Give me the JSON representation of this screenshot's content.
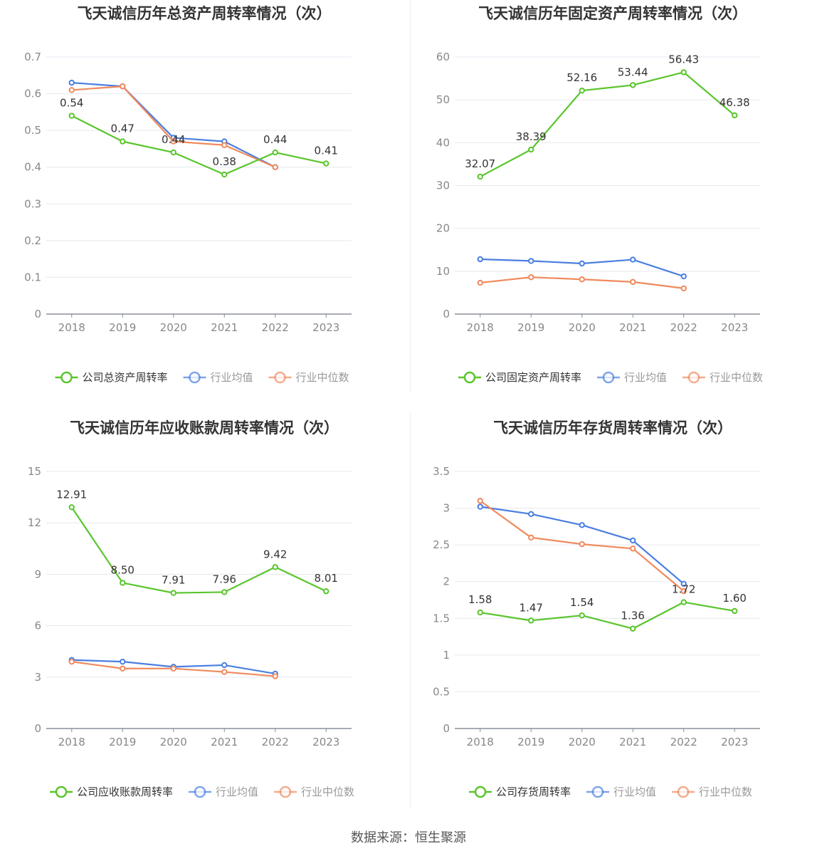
{
  "source": "数据来源：恒生聚源",
  "colors": {
    "company": "#5ac52d",
    "avg": "#4a7fe0",
    "median": "#f08a5d"
  },
  "chart_data": [
    {
      "type": "line",
      "title": "飞天诚信历年总资产周转率情况（次）",
      "categories": [
        "2018",
        "2019",
        "2020",
        "2021",
        "2022",
        "2023"
      ],
      "ylim": [
        0,
        0.7
      ],
      "yticks": [
        "0",
        "0.1",
        "0.2",
        "0.3",
        "0.4",
        "0.5",
        "0.6",
        "0.7"
      ],
      "series": [
        {
          "name": "公司总资产周转率",
          "values": [
            0.54,
            0.47,
            0.44,
            0.38,
            0.44,
            0.41
          ],
          "labels": [
            "0.54",
            "0.47",
            "0.44",
            "0.38",
            "0.44",
            "0.41"
          ]
        },
        {
          "name": "行业均值",
          "values": [
            0.63,
            0.62,
            0.48,
            0.47,
            0.4,
            null
          ]
        },
        {
          "name": "行业中位数",
          "values": [
            0.61,
            0.62,
            0.47,
            0.46,
            0.4,
            null
          ]
        }
      ],
      "grid": true,
      "legend": "bottom"
    },
    {
      "type": "line",
      "title": "飞天诚信历年固定资产周转率情况（次）",
      "categories": [
        "2018",
        "2019",
        "2020",
        "2021",
        "2022",
        "2023"
      ],
      "ylim": [
        0,
        60
      ],
      "yticks": [
        "0",
        "10",
        "20",
        "30",
        "40",
        "50",
        "60"
      ],
      "series": [
        {
          "name": "公司固定资产周转率",
          "values": [
            32.07,
            38.39,
            52.16,
            53.44,
            56.43,
            46.38
          ],
          "labels": [
            "32.07",
            "38.39",
            "52.16",
            "53.44",
            "56.43",
            "46.38"
          ]
        },
        {
          "name": "行业均值",
          "values": [
            12.8,
            12.4,
            11.8,
            12.7,
            8.8,
            null
          ]
        },
        {
          "name": "行业中位数",
          "values": [
            7.3,
            8.6,
            8.1,
            7.5,
            6.0,
            null
          ]
        }
      ],
      "grid": true,
      "legend": "bottom"
    },
    {
      "type": "line",
      "title": "飞天诚信历年应收账款周转率情况（次）",
      "categories": [
        "2018",
        "2019",
        "2020",
        "2021",
        "2022",
        "2023"
      ],
      "ylim": [
        0,
        15
      ],
      "yticks": [
        "0",
        "3",
        "6",
        "9",
        "12",
        "15"
      ],
      "series": [
        {
          "name": "公司应收账款周转率",
          "values": [
            12.91,
            8.5,
            7.91,
            7.96,
            9.42,
            8.01
          ],
          "labels": [
            "12.91",
            "8.50",
            "7.91",
            "7.96",
            "9.42",
            "8.01"
          ]
        },
        {
          "name": "行业均值",
          "values": [
            4.0,
            3.9,
            3.6,
            3.7,
            3.2,
            null
          ]
        },
        {
          "name": "行业中位数",
          "values": [
            3.9,
            3.5,
            3.5,
            3.3,
            3.05,
            null
          ]
        }
      ],
      "grid": true,
      "legend": "bottom"
    },
    {
      "type": "line",
      "title": "飞天诚信历年存货周转率情况（次）",
      "categories": [
        "2018",
        "2019",
        "2020",
        "2021",
        "2022",
        "2023"
      ],
      "ylim": [
        0,
        3.5
      ],
      "yticks": [
        "0",
        "0.5",
        "1",
        "1.5",
        "2",
        "2.5",
        "3",
        "3.5"
      ],
      "series": [
        {
          "name": "公司存货周转率",
          "values": [
            1.58,
            1.47,
            1.54,
            1.36,
            1.72,
            1.6
          ],
          "labels": [
            "1.58",
            "1.47",
            "1.54",
            "1.36",
            "1.72",
            "1.60"
          ]
        },
        {
          "name": "行业均值",
          "values": [
            3.02,
            2.92,
            2.77,
            2.56,
            1.97,
            null
          ]
        },
        {
          "name": "行业中位数",
          "values": [
            3.1,
            2.6,
            2.51,
            2.45,
            1.87,
            null
          ]
        }
      ],
      "grid": true,
      "legend": "bottom"
    }
  ]
}
